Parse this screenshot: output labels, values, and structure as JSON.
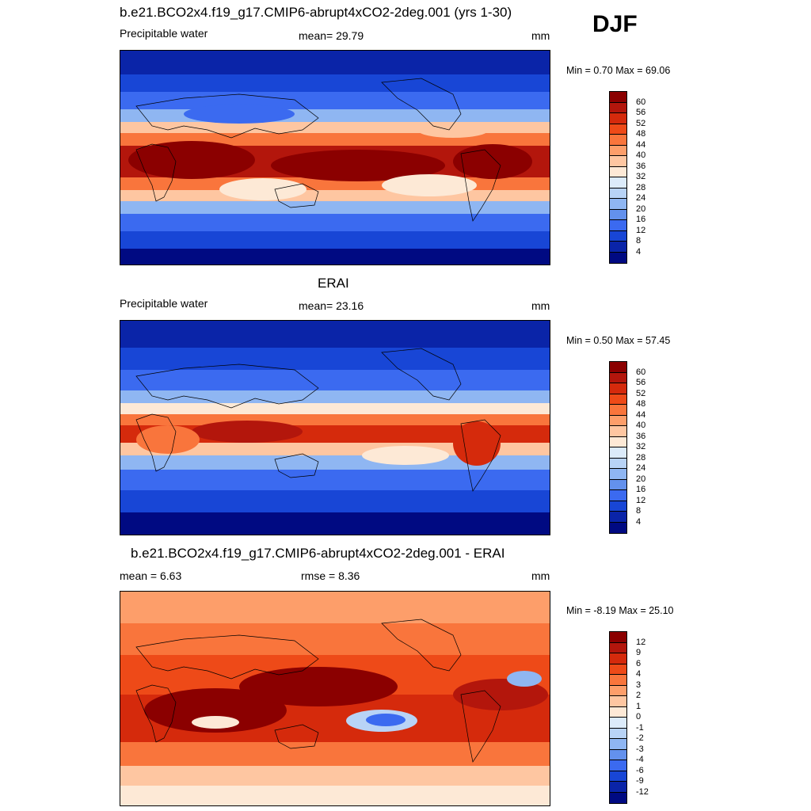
{
  "season": "DJF",
  "chart_data": [
    {
      "type": "heatmap",
      "title": "b.e21.BCO2x4.f19_g17.CMIP6-abrupt4xCO2-2deg.001 (yrs 1-30)",
      "left_label": "Precipitable water",
      "center_label": "mean=  29.79",
      "units": "mm",
      "min_max": "Min =   0.70 Max =  69.06",
      "mean": 29.79,
      "min": 0.7,
      "max": 69.06,
      "levels": [
        "60",
        "56",
        "52",
        "48",
        "44",
        "40",
        "36",
        "32",
        "28",
        "24",
        "20",
        "16",
        "12",
        "8",
        "4"
      ],
      "colors": [
        "#8b0000",
        "#b3160c",
        "#d52a0c",
        "#ee4a18",
        "#f9753c",
        "#fd9e6a",
        "#fec6a1",
        "#fde9d6",
        "#dcebfa",
        "#b8d3f6",
        "#8fb6f2",
        "#6391ed",
        "#3b6af0",
        "#1846d6",
        "#0a24a8",
        "#000a82"
      ]
    },
    {
      "type": "heatmap",
      "title": "ERAI",
      "left_label": "Precipitable water",
      "center_label": "mean=  23.16",
      "units": "mm",
      "min_max": "Min =   0.50 Max =  57.45",
      "mean": 23.16,
      "min": 0.5,
      "max": 57.45,
      "levels": [
        "60",
        "56",
        "52",
        "48",
        "44",
        "40",
        "36",
        "32",
        "28",
        "24",
        "20",
        "16",
        "12",
        "8",
        "4"
      ],
      "colors": [
        "#8b0000",
        "#b3160c",
        "#d52a0c",
        "#ee4a18",
        "#f9753c",
        "#fd9e6a",
        "#fec6a1",
        "#fde9d6",
        "#dcebfa",
        "#b8d3f6",
        "#8fb6f2",
        "#6391ed",
        "#3b6af0",
        "#1846d6",
        "#0a24a8",
        "#000a82"
      ]
    },
    {
      "type": "heatmap",
      "title": "b.e21.BCO2x4.f19_g17.CMIP6-abrupt4xCO2-2deg.001 - ERAI",
      "left_label": "mean =   6.63",
      "center_label": "rmse =   8.36",
      "units": "mm",
      "min_max": "Min =  -8.19 Max =  25.10",
      "mean": 6.63,
      "rmse": 8.36,
      "min": -8.19,
      "max": 25.1,
      "levels": [
        "12",
        "9",
        "6",
        "4",
        "3",
        "2",
        "1",
        "0",
        "-1",
        "-2",
        "-3",
        "-4",
        "-6",
        "-9",
        "-12"
      ],
      "colors": [
        "#8b0000",
        "#b3160c",
        "#d52a0c",
        "#ee4a18",
        "#f9753c",
        "#fd9e6a",
        "#fec6a1",
        "#fde9d6",
        "#dcebfa",
        "#b8d3f6",
        "#8fb6f2",
        "#6391ed",
        "#3b6af0",
        "#1846d6",
        "#0a24a8",
        "#000a82"
      ]
    }
  ]
}
